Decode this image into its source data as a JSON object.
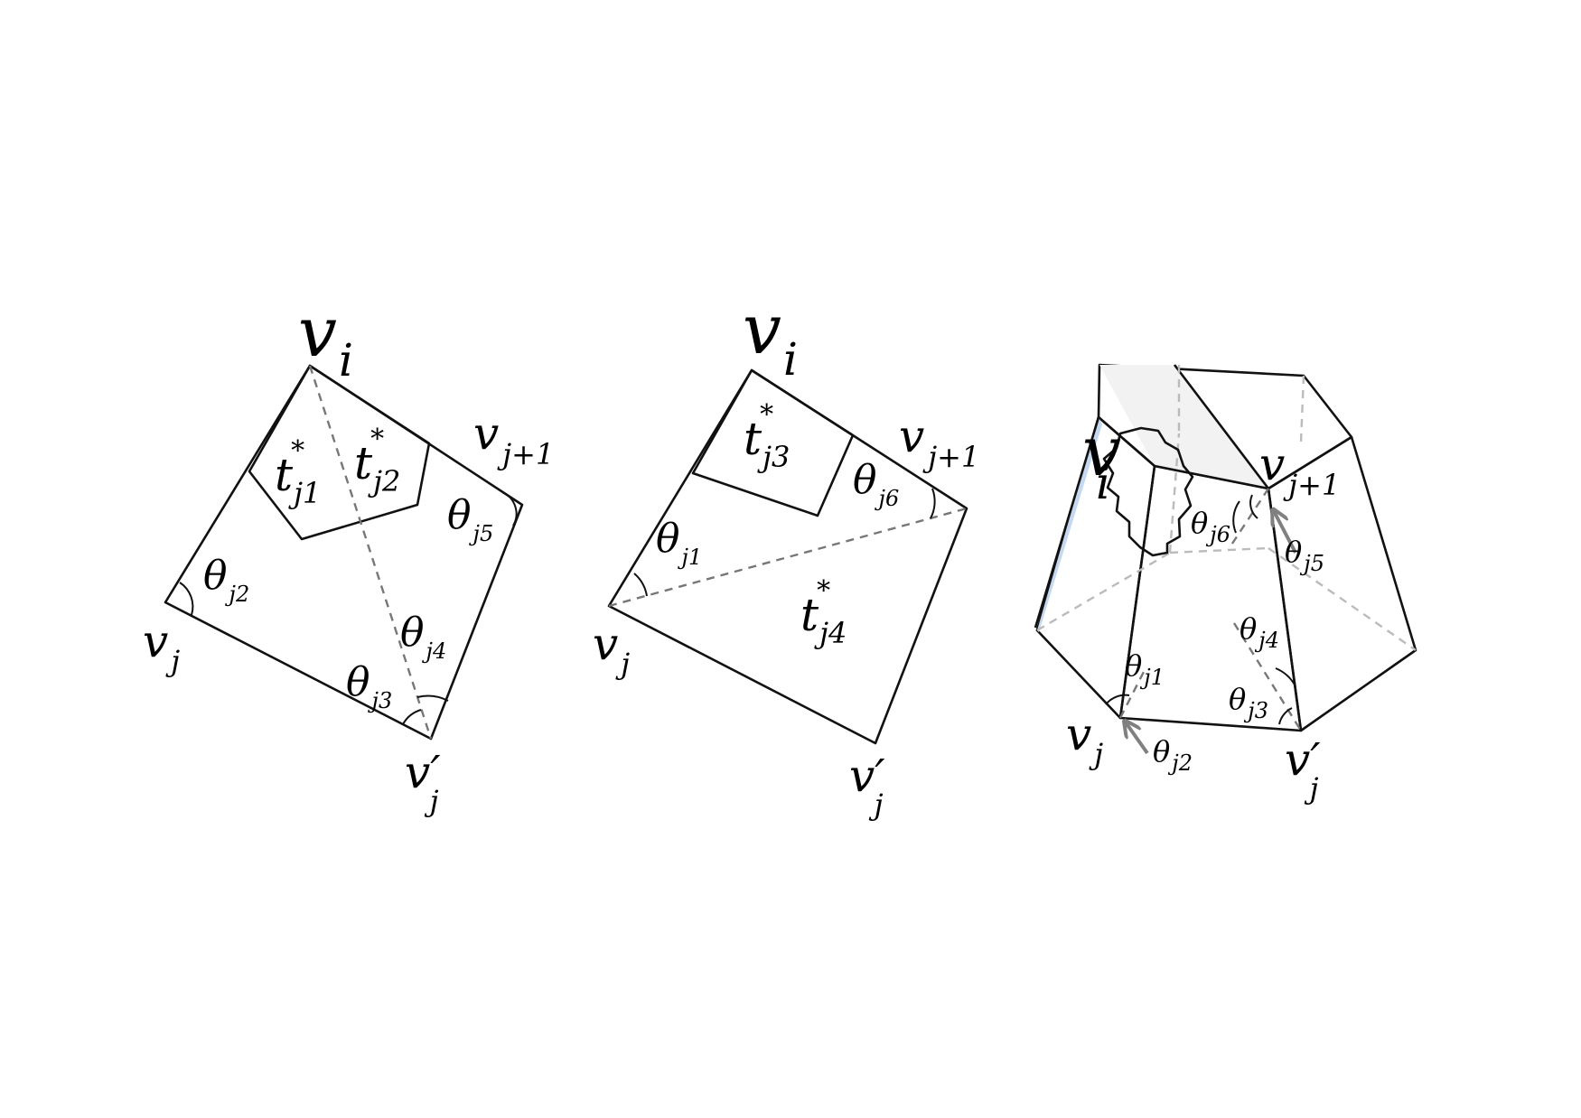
{
  "figure": {
    "panel1": {
      "labels": {
        "vi": {
          "base": "v",
          "sub": "i"
        },
        "vj1": {
          "base": "v",
          "sub": "j+1"
        },
        "vj": {
          "base": "v",
          "sub": "j"
        },
        "vjp": {
          "base": "v′",
          "sub": "j"
        },
        "t1": {
          "base": "t",
          "sup": "*",
          "sub": "j1"
        },
        "t2": {
          "base": "t",
          "sup": "*",
          "sub": "j2"
        },
        "th2": {
          "base": "θ",
          "sub": "j2"
        },
        "th3": {
          "base": "θ",
          "sub": "j3"
        },
        "th4": {
          "base": "θ",
          "sub": "j4"
        },
        "th5": {
          "base": "θ",
          "sub": "j5"
        }
      }
    },
    "panel2": {
      "labels": {
        "vi": {
          "base": "v",
          "sub": "i"
        },
        "vj1": {
          "base": "v",
          "sub": "j+1"
        },
        "vj": {
          "base": "v",
          "sub": "j"
        },
        "vjp": {
          "base": "v′",
          "sub": "j"
        },
        "t3": {
          "base": "t",
          "sup": "*",
          "sub": "j3"
        },
        "t4": {
          "base": "t",
          "sup": "*",
          "sub": "j4"
        },
        "th1": {
          "base": "θ",
          "sub": "j1"
        },
        "th6": {
          "base": "θ",
          "sub": "j6"
        }
      }
    },
    "panel3": {
      "labels": {
        "vi": {
          "base": "v",
          "sub": "i"
        },
        "vj1": {
          "base": "v",
          "sub": "j+1"
        },
        "vj": {
          "base": "v",
          "sub": "j"
        },
        "vjp": {
          "base": "v′",
          "sub": "j"
        },
        "th1": {
          "base": "θ",
          "sub": "j1"
        },
        "th2": {
          "base": "θ",
          "sub": "j2"
        },
        "th3": {
          "base": "θ",
          "sub": "j3"
        },
        "th4": {
          "base": "θ",
          "sub": "j4"
        },
        "th5": {
          "base": "θ",
          "sub": "j5"
        },
        "th6": {
          "base": "θ",
          "sub": "j6"
        }
      }
    },
    "colors": {
      "light_fill": "#dce6f4",
      "dark_fill": "#8eb2e0",
      "mid_fill": "#c5d8f0",
      "top_fill": "#f2f2f2",
      "edge": "#111111",
      "dash": "#777777",
      "arrow": "#808080"
    }
  }
}
